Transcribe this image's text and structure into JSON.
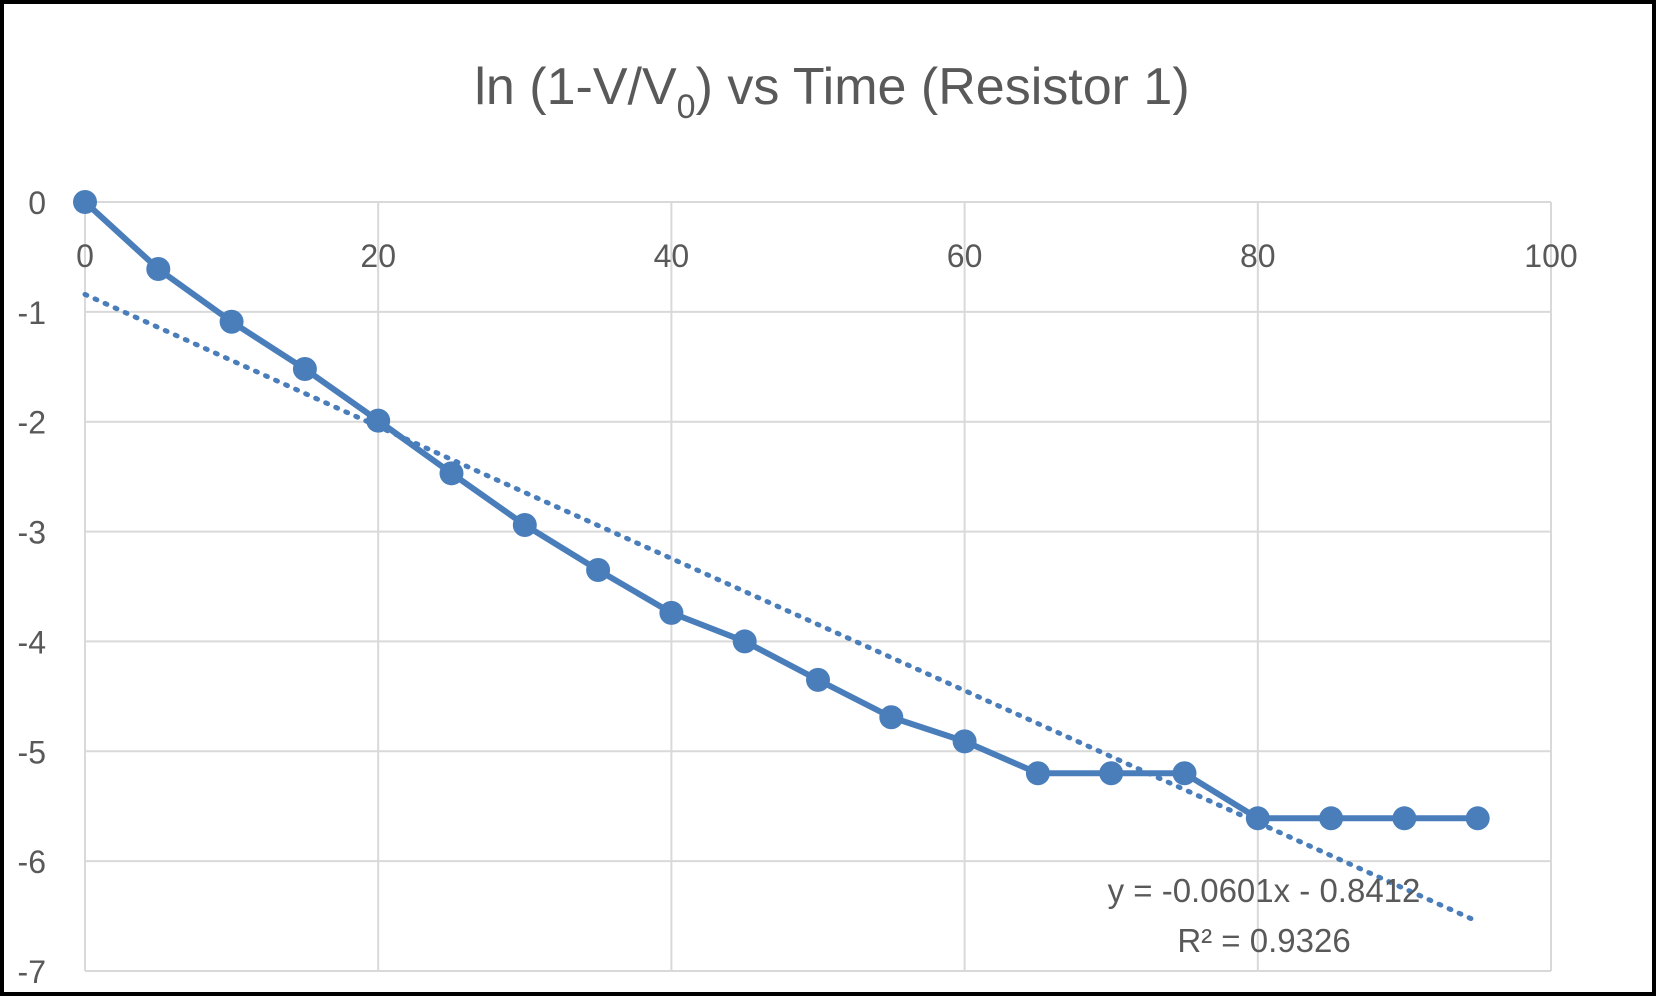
{
  "chart_data": {
    "type": "scatter",
    "title": {
      "prefix": "ln (1-V/V",
      "subscript": "0",
      "suffix": ") vs Time (Resistor 1)"
    },
    "xlabel": "",
    "ylabel": "",
    "xlim": [
      0,
      100
    ],
    "ylim": [
      -7,
      0
    ],
    "x_ticks": [
      "0",
      "20",
      "40",
      "60",
      "80",
      "100"
    ],
    "y_ticks": [
      "0",
      "-1",
      "-2",
      "-3",
      "-4",
      "-5",
      "-6",
      "-7"
    ],
    "grid": true,
    "legend": "none",
    "series": [
      {
        "color": "#4a7ebb",
        "marker": "circle",
        "line": "solid",
        "x": [
          0,
          5,
          10,
          15,
          20,
          25,
          30,
          35,
          40,
          45,
          50,
          55,
          60,
          65,
          70,
          75,
          80,
          85,
          90,
          95
        ],
        "y": [
          0,
          -0.61,
          -1.09,
          -1.52,
          -1.99,
          -2.47,
          -2.94,
          -3.35,
          -3.74,
          -4.0,
          -4.35,
          -4.69,
          -4.91,
          -5.2,
          -5.2,
          -5.2,
          -5.61,
          -5.61,
          -5.61,
          -5.61
        ]
      }
    ],
    "trendline": {
      "type": "linear",
      "style": "dotted",
      "color": "#4a7ebb",
      "slope": -0.0601,
      "intercept": -0.8412,
      "x_range": [
        0,
        95
      ],
      "equation": "y = -0.0601x - 0.8412",
      "r_squared": "R² = 0.9326"
    }
  }
}
